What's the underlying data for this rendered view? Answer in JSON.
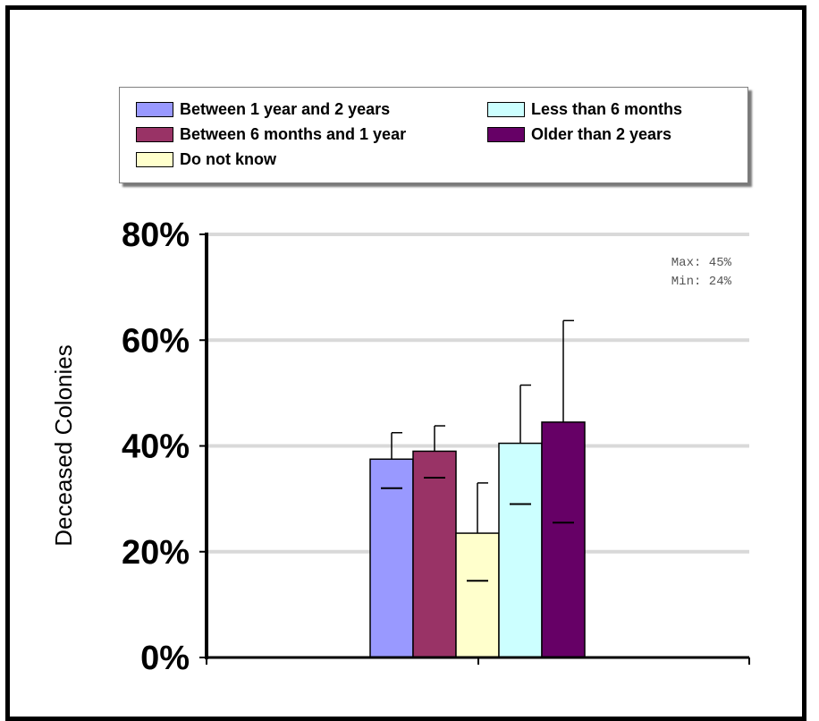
{
  "chart_data": {
    "type": "bar",
    "ylabel": "Deceased Colonies",
    "ylim": [
      0,
      80
    ],
    "yticks": [
      "0%",
      "20%",
      "40%",
      "60%",
      "80%"
    ],
    "grid": true,
    "legend_position": "top",
    "annotation": {
      "max": "Max: 45%",
      "min": "Min: 24%"
    },
    "series": [
      {
        "name": "Between 1 year and 2 years",
        "value": 37.5,
        "error_upper": 42.5,
        "lower_mark": 32.0,
        "color": "#9999ff"
      },
      {
        "name": "Between 6 months and 1 year",
        "value": 39.0,
        "error_upper": 43.8,
        "lower_mark": 34.0,
        "color": "#993366"
      },
      {
        "name": "Do not know",
        "value": 23.5,
        "error_upper": 33.0,
        "lower_mark": 14.5,
        "color": "#ffffcc"
      },
      {
        "name": "Less than 6 months",
        "value": 40.5,
        "error_upper": 51.5,
        "lower_mark": 29.0,
        "color": "#ccffff"
      },
      {
        "name": "Older than 2 years",
        "value": 44.5,
        "error_upper": 63.7,
        "lower_mark": 25.5,
        "color": "#660066"
      }
    ]
  },
  "legend": {
    "items": [
      {
        "label": "Between 1 year and 2 years",
        "color": "#9999ff"
      },
      {
        "label": "Less than 6 months",
        "color": "#ccffff"
      },
      {
        "label": "Between 6 months and 1 year",
        "color": "#993366"
      },
      {
        "label": "Older than 2 years",
        "color": "#660066"
      },
      {
        "label": "Do not know",
        "color": "#ffffcc"
      }
    ]
  }
}
